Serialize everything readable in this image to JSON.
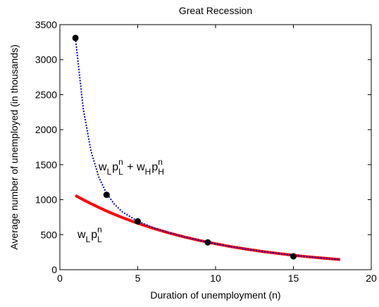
{
  "chart_data": {
    "type": "line",
    "title": "Great Recession",
    "xlabel": "Duration of unemployment (n)",
    "ylabel": "Average number of unemployed (in thousands)",
    "xlim": [
      0,
      20
    ],
    "xticks": [
      0,
      5,
      10,
      15,
      20
    ],
    "ylim": [
      0,
      3500
    ],
    "yticks": [
      0,
      500,
      1000,
      1500,
      2000,
      2500,
      3000,
      3500
    ],
    "x": [
      1,
      1.5,
      2,
      2.5,
      3,
      3.5,
      4,
      5,
      6,
      7,
      8,
      9,
      10,
      11,
      12,
      13,
      14,
      15,
      16,
      17,
      18
    ],
    "series": [
      {
        "color": "#ff0000",
        "style": "solid",
        "values": [
          1060,
          999,
          943,
          889,
          838,
          791,
          746,
          664,
          590,
          525,
          467,
          416,
          370,
          329,
          293,
          260,
          232,
          206,
          183,
          163,
          145
        ]
      },
      {
        "color": "#0000cc",
        "style": "dotted",
        "values": [
          3310,
          2298,
          1693,
          1322,
          1088,
          935,
          829,
          692,
          599,
          528,
          468,
          416,
          370,
          329,
          293,
          260,
          232,
          206,
          183,
          163,
          145
        ]
      }
    ],
    "points": {
      "color": "#000000",
      "x": [
        1,
        3,
        5,
        9.5,
        15
      ],
      "values": [
        3310,
        1070,
        690,
        390,
        190
      ]
    },
    "annotations": [
      {
        "parts": [
          {
            "base": "w",
            "sub": "L"
          },
          {
            "base": "p",
            "sub": "L",
            "sup": "n"
          },
          {
            "base": " + w",
            "sub": "H"
          },
          {
            "base": "p",
            "sub": "H",
            "sup": "n"
          }
        ]
      },
      {
        "parts": [
          {
            "base": "w",
            "sub": "L"
          },
          {
            "base": "p",
            "sub": "L",
            "sup": "n"
          }
        ]
      }
    ]
  }
}
